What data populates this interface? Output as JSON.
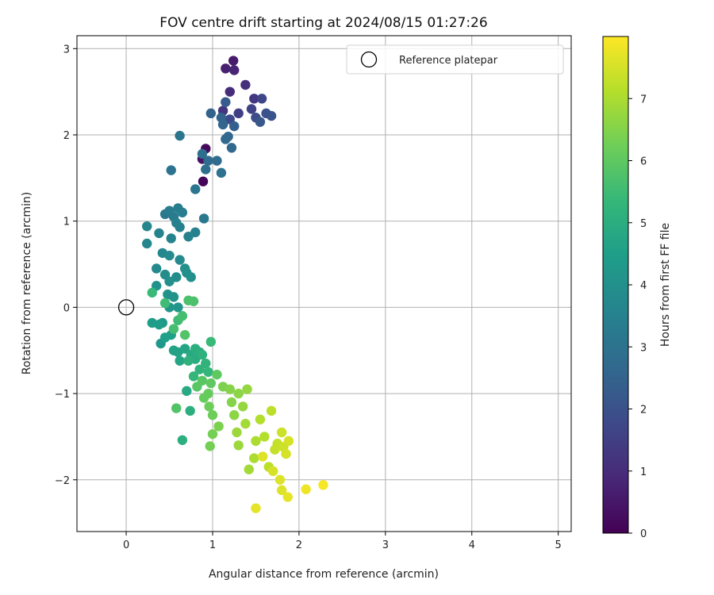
{
  "chart_data": {
    "type": "scatter",
    "title": "FOV centre drift starting at 2024/08/15 01:27:26",
    "xlabel": "Angular distance from reference (arcmin)",
    "ylabel": "Rotation from reference (arcmin)",
    "xlim": [
      -0.57,
      5.15
    ],
    "ylim": [
      -2.6,
      3.15
    ],
    "xticks": [
      0,
      1,
      2,
      3,
      4,
      5
    ],
    "yticks": [
      -2,
      -1,
      0,
      1,
      2,
      3
    ],
    "grid": true,
    "legend": {
      "placement": "top-right",
      "entries": [
        "Reference platepar"
      ]
    },
    "reference_point": {
      "x": 0,
      "y": 0,
      "label": "Reference platepar"
    },
    "colorbar": {
      "label": "Hours from first FF file",
      "colormap": "viridis",
      "range": [
        0,
        8
      ],
      "ticks": [
        0,
        1,
        2,
        3,
        4,
        5,
        6,
        7
      ],
      "colors": [
        "#440154",
        "#482878",
        "#3e4989",
        "#31688e",
        "#26828e",
        "#1f9e89",
        "#35b779",
        "#6ece58",
        "#b5de2b",
        "#fde725"
      ]
    },
    "series": [
      {
        "points": [
          [
            0.89,
            1.46,
            0.1
          ],
          [
            0.92,
            1.84,
            0.2
          ],
          [
            0.88,
            1.72,
            0.4
          ],
          [
            1.24,
            2.86,
            0.6
          ],
          [
            1.15,
            2.77,
            0.7
          ],
          [
            1.25,
            2.75,
            0.8
          ],
          [
            1.2,
            2.5,
            1.0
          ],
          [
            1.38,
            2.58,
            1.1
          ],
          [
            1.12,
            2.28,
            1.2
          ],
          [
            1.48,
            2.42,
            1.3
          ],
          [
            1.3,
            2.25,
            1.5
          ],
          [
            1.45,
            2.3,
            1.6
          ],
          [
            1.57,
            2.42,
            1.7
          ],
          [
            1.2,
            2.18,
            1.8
          ],
          [
            1.5,
            2.2,
            1.9
          ],
          [
            1.62,
            2.25,
            2.0
          ],
          [
            1.68,
            2.22,
            2.1
          ],
          [
            1.55,
            2.15,
            2.2
          ],
          [
            1.15,
            2.38,
            2.3
          ],
          [
            1.25,
            2.1,
            2.4
          ],
          [
            0.98,
            2.25,
            2.5
          ],
          [
            1.1,
            2.2,
            2.5
          ],
          [
            1.12,
            2.12,
            2.6
          ],
          [
            1.18,
            1.98,
            2.6
          ],
          [
            1.22,
            1.85,
            2.7
          ],
          [
            1.15,
            1.95,
            2.7
          ],
          [
            1.05,
            1.7,
            2.8
          ],
          [
            0.95,
            1.7,
            2.8
          ],
          [
            0.92,
            1.6,
            2.9
          ],
          [
            0.88,
            1.78,
            2.9
          ],
          [
            1.1,
            1.56,
            3.0
          ],
          [
            0.52,
            1.59,
            3.0
          ],
          [
            0.62,
            1.99,
            3.1
          ],
          [
            0.8,
            1.37,
            3.1
          ],
          [
            0.9,
            1.03,
            3.2
          ],
          [
            0.45,
            1.08,
            3.2
          ],
          [
            0.5,
            1.12,
            3.3
          ],
          [
            0.55,
            1.05,
            3.3
          ],
          [
            0.6,
            1.15,
            3.4
          ],
          [
            0.65,
            1.1,
            3.4
          ],
          [
            0.58,
            0.98,
            3.5
          ],
          [
            0.62,
            0.93,
            3.5
          ],
          [
            0.8,
            0.87,
            3.5
          ],
          [
            0.72,
            0.82,
            3.6
          ],
          [
            0.52,
            0.8,
            3.6
          ],
          [
            0.38,
            0.86,
            3.6
          ],
          [
            0.24,
            0.94,
            3.7
          ],
          [
            0.24,
            0.74,
            3.7
          ],
          [
            0.42,
            0.63,
            3.7
          ],
          [
            0.5,
            0.6,
            3.8
          ],
          [
            0.62,
            0.55,
            3.8
          ],
          [
            0.35,
            0.45,
            3.8
          ],
          [
            0.45,
            0.38,
            3.9
          ],
          [
            0.58,
            0.35,
            3.9
          ],
          [
            0.7,
            0.4,
            3.9
          ],
          [
            0.75,
            0.35,
            4.0
          ],
          [
            0.68,
            0.45,
            4.0
          ],
          [
            0.5,
            0.3,
            4.0
          ],
          [
            0.35,
            0.25,
            4.1
          ],
          [
            0.48,
            0.15,
            4.1
          ],
          [
            0.55,
            0.12,
            4.1
          ],
          [
            0.6,
            0.0,
            4.2
          ],
          [
            0.5,
            0.0,
            4.2
          ],
          [
            0.42,
            -0.18,
            4.3
          ],
          [
            0.4,
            -0.42,
            4.3
          ],
          [
            0.3,
            -0.18,
            4.4
          ],
          [
            0.38,
            -0.2,
            4.4
          ],
          [
            0.45,
            -0.35,
            4.5
          ],
          [
            0.52,
            -0.32,
            4.5
          ],
          [
            0.55,
            -0.5,
            4.6
          ],
          [
            0.6,
            -0.52,
            4.6
          ],
          [
            0.68,
            -0.48,
            4.7
          ],
          [
            0.62,
            -0.62,
            4.7
          ],
          [
            0.75,
            -0.55,
            4.8
          ],
          [
            0.7,
            -0.97,
            4.8
          ],
          [
            0.85,
            -0.52,
            4.9
          ],
          [
            0.8,
            -0.6,
            4.9
          ],
          [
            0.74,
            -1.2,
            5.0
          ],
          [
            0.65,
            -1.54,
            5.0
          ],
          [
            0.8,
            -0.48,
            5.0
          ],
          [
            0.72,
            -0.62,
            5.1
          ],
          [
            0.88,
            -0.55,
            5.1
          ],
          [
            0.92,
            -0.65,
            5.2
          ],
          [
            0.85,
            -0.72,
            5.2
          ],
          [
            0.78,
            -0.8,
            5.3
          ],
          [
            0.95,
            -0.75,
            5.3
          ],
          [
            0.98,
            -0.4,
            5.4
          ],
          [
            0.3,
            0.17,
            5.4
          ],
          [
            0.6,
            -0.15,
            5.5
          ],
          [
            0.45,
            0.05,
            5.5
          ],
          [
            0.55,
            -0.25,
            5.6
          ],
          [
            0.65,
            -0.1,
            5.6
          ],
          [
            0.72,
            0.08,
            5.7
          ],
          [
            0.78,
            0.07,
            5.7
          ],
          [
            0.68,
            -0.32,
            5.8
          ],
          [
            0.58,
            -1.17,
            5.8
          ],
          [
            0.82,
            -0.92,
            5.9
          ],
          [
            0.88,
            -0.85,
            5.9
          ],
          [
            0.98,
            -0.88,
            6.0
          ],
          [
            1.05,
            -0.78,
            6.0
          ],
          [
            0.95,
            -1.0,
            6.1
          ],
          [
            0.9,
            -1.05,
            6.1
          ],
          [
            0.96,
            -1.15,
            6.2
          ],
          [
            1.0,
            -1.25,
            6.2
          ],
          [
            0.97,
            -1.61,
            6.3
          ],
          [
            1.0,
            -1.47,
            6.3
          ],
          [
            1.07,
            -1.38,
            6.4
          ],
          [
            1.12,
            -0.92,
            6.4
          ],
          [
            1.2,
            -0.95,
            6.5
          ],
          [
            1.22,
            -1.1,
            6.5
          ],
          [
            1.25,
            -1.25,
            6.6
          ],
          [
            1.3,
            -1.0,
            6.6
          ],
          [
            1.35,
            -1.15,
            6.7
          ],
          [
            1.4,
            -0.95,
            6.7
          ],
          [
            1.28,
            -1.45,
            6.8
          ],
          [
            1.3,
            -1.6,
            6.8
          ],
          [
            1.38,
            -1.35,
            6.9
          ],
          [
            1.42,
            -1.88,
            6.9
          ],
          [
            1.48,
            -1.75,
            7.0
          ],
          [
            1.5,
            -1.55,
            7.0
          ],
          [
            1.55,
            -1.3,
            7.1
          ],
          [
            1.6,
            -1.5,
            7.1
          ],
          [
            1.65,
            -1.85,
            7.2
          ],
          [
            1.68,
            -1.2,
            7.2
          ],
          [
            1.72,
            -1.65,
            7.3
          ],
          [
            1.75,
            -1.58,
            7.3
          ],
          [
            1.8,
            -1.45,
            7.4
          ],
          [
            1.82,
            -1.62,
            7.4
          ],
          [
            1.85,
            -1.7,
            7.5
          ],
          [
            1.88,
            -1.55,
            7.5
          ],
          [
            1.78,
            -2.0,
            7.6
          ],
          [
            1.8,
            -2.12,
            7.6
          ],
          [
            1.87,
            -2.2,
            7.7
          ],
          [
            1.5,
            -2.33,
            7.7
          ],
          [
            2.08,
            -2.11,
            7.8
          ],
          [
            2.28,
            -2.06,
            7.9
          ],
          [
            1.58,
            -1.73,
            7.6
          ],
          [
            1.7,
            -1.9,
            7.5
          ]
        ]
      }
    ]
  }
}
